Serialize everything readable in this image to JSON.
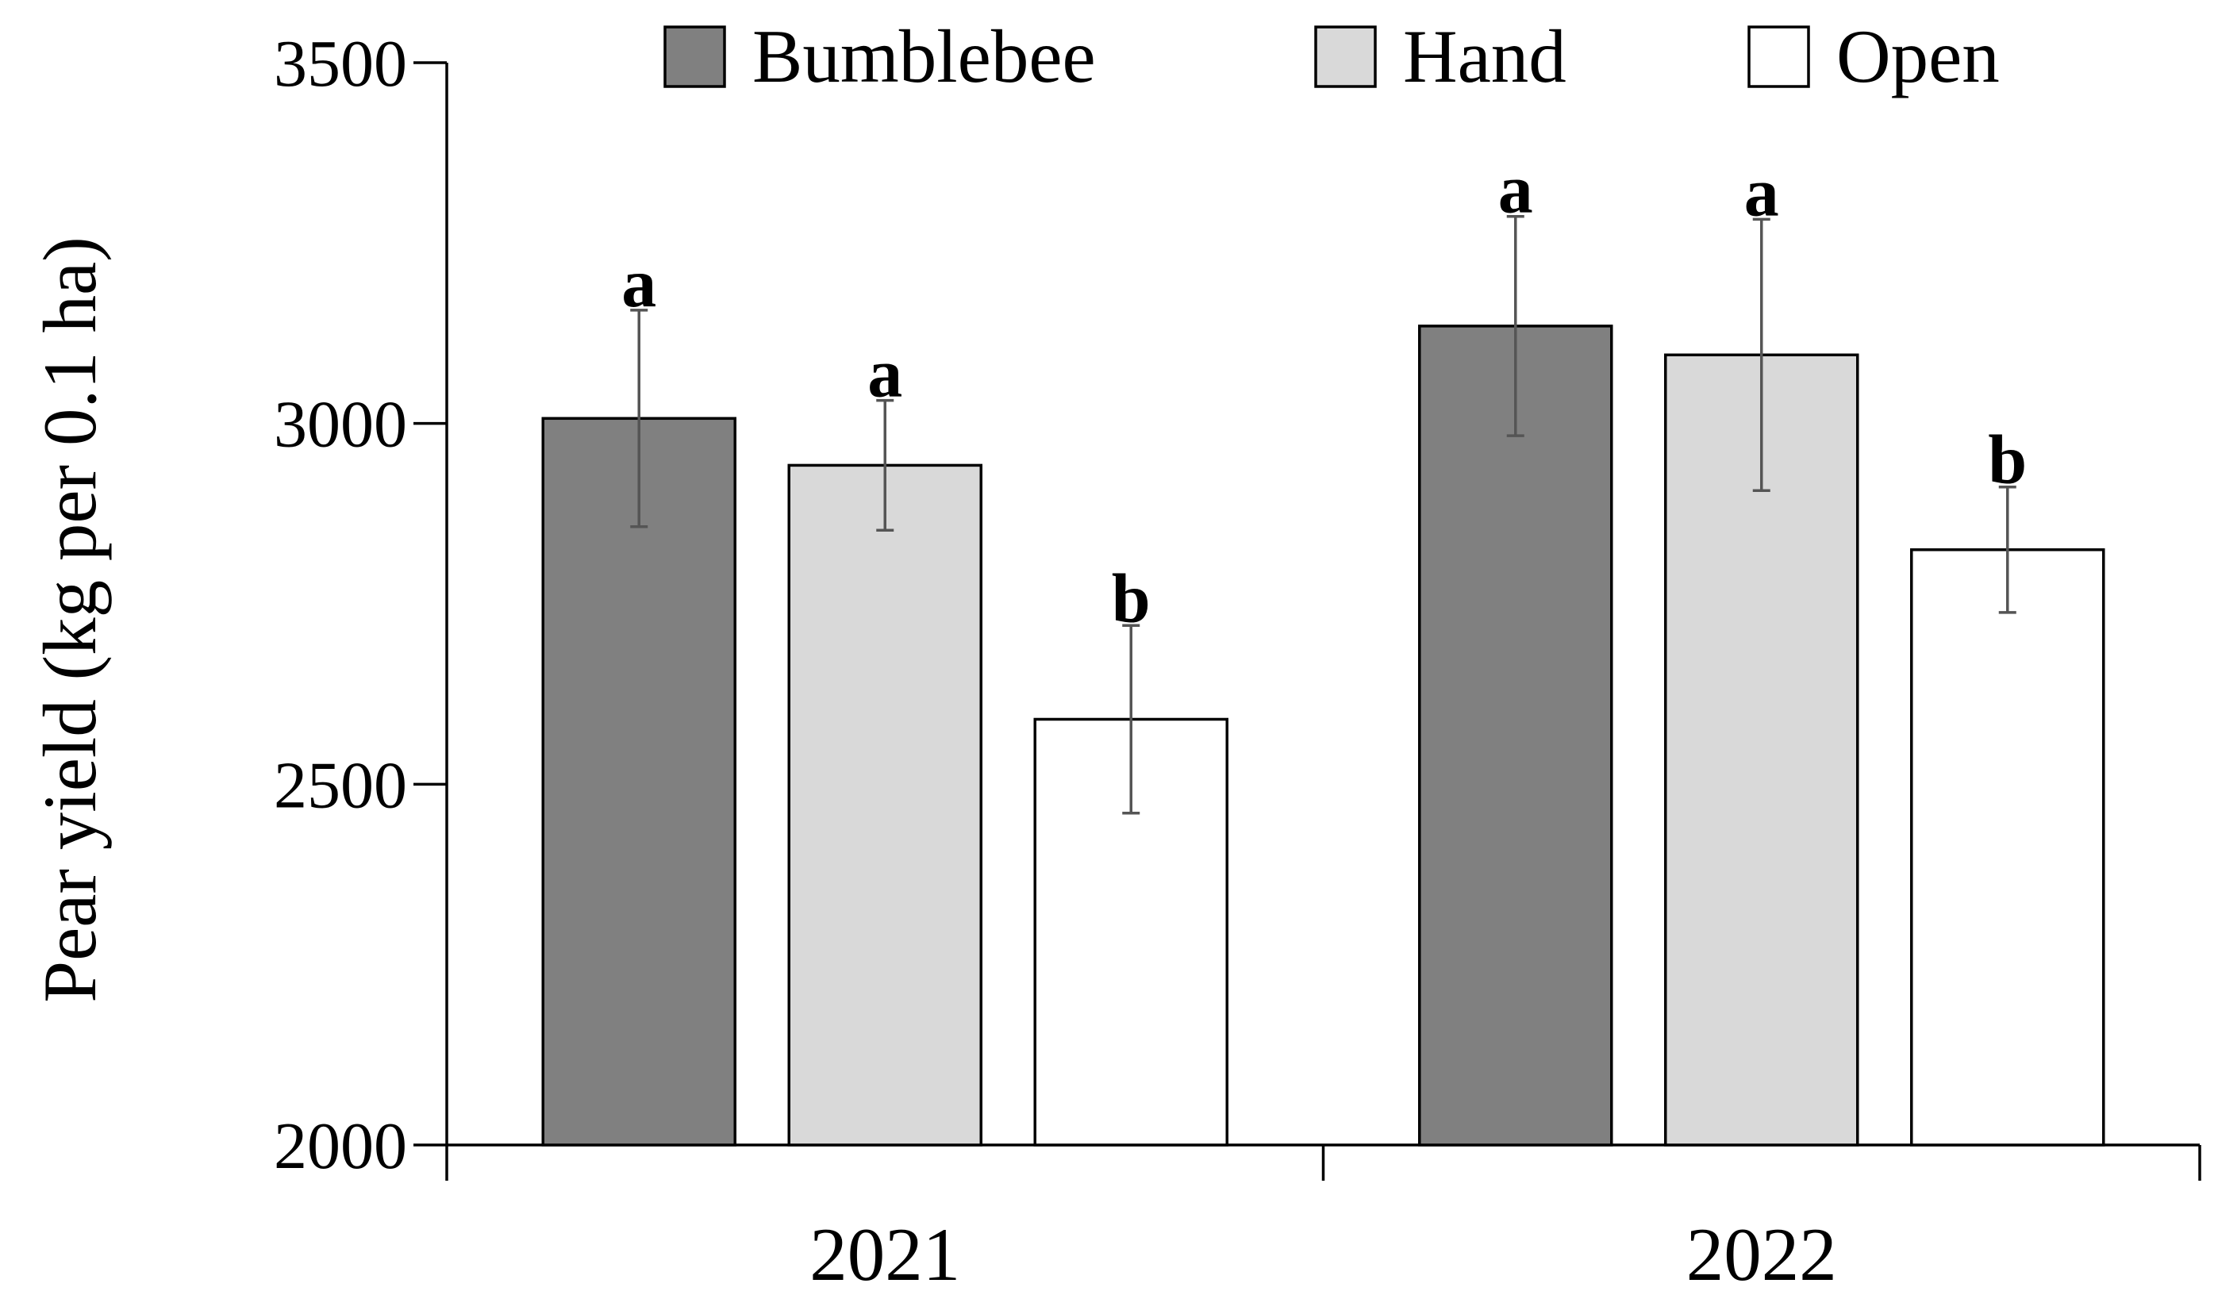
{
  "chart_data": {
    "type": "bar",
    "title": "",
    "xlabel": "",
    "ylabel": "Pear yield (kg per 0.1 ha)",
    "ylim": [
      2000,
      3500
    ],
    "yticks": [
      2000,
      2500,
      3000,
      3500
    ],
    "ytick_labels": [
      "2000",
      "2500",
      "3000",
      "3500"
    ],
    "categories": [
      "2021",
      "2022"
    ],
    "legend_position": "top",
    "series": [
      {
        "name": "Bumblebee",
        "color": "#808080",
        "values": [
          3007,
          3135
        ],
        "errors": [
          150,
          152
        ],
        "labels": [
          "a",
          "a"
        ]
      },
      {
        "name": "Hand",
        "color": "#d9d9d9",
        "values": [
          2942,
          3095
        ],
        "errors": [
          90,
          188
        ],
        "labels": [
          "a",
          "a"
        ]
      },
      {
        "name": "Open",
        "color": "#ffffff",
        "values": [
          2590,
          2825
        ],
        "errors": [
          130,
          87
        ],
        "labels": [
          "b",
          "b"
        ]
      }
    ]
  }
}
